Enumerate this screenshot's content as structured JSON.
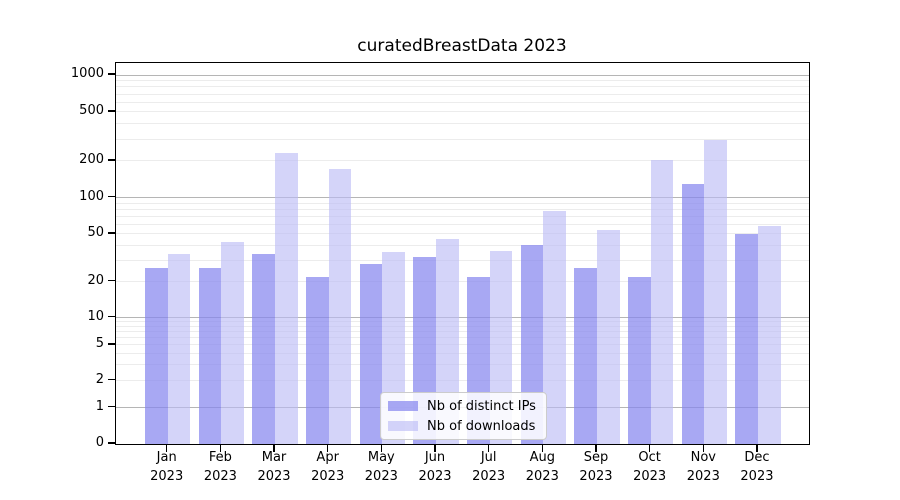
{
  "title": "curatedBreastData 2023",
  "chart_data": {
    "type": "bar",
    "title": "curatedBreastData 2023",
    "categories": [
      "Jan",
      "Feb",
      "Mar",
      "Apr",
      "May",
      "Jun",
      "Jul",
      "Aug",
      "Sep",
      "Oct",
      "Nov",
      "Dec"
    ],
    "category_year": "2023",
    "series": [
      {
        "name": "Nb of distinct IPs",
        "color": "rgba(134,134,238,0.72)",
        "values": [
          26,
          26,
          34,
          22,
          28,
          32,
          22,
          40,
          26,
          22,
          129,
          50
        ]
      },
      {
        "name": "Nb of downloads",
        "color": "rgba(186,186,246,0.62)",
        "values": [
          34,
          43,
          231,
          170,
          35,
          45,
          36,
          78,
          54,
          202,
          297,
          58
        ]
      }
    ],
    "y_scale": "symlog (linear 0-1, log above 1)",
    "y_ticks": [
      0,
      1,
      2,
      5,
      10,
      20,
      50,
      100,
      200,
      500,
      1000
    ],
    "y_major_gridlines": [
      1,
      10,
      100,
      1000
    ],
    "ylim": [
      0,
      1250
    ],
    "grid": "horizontal major+minor",
    "legend_position": "lower center",
    "colors": {
      "major_grid": "#b5b5b5",
      "minor_grid": "#ececec",
      "axis": "#000000",
      "background": "#ffffff"
    }
  }
}
